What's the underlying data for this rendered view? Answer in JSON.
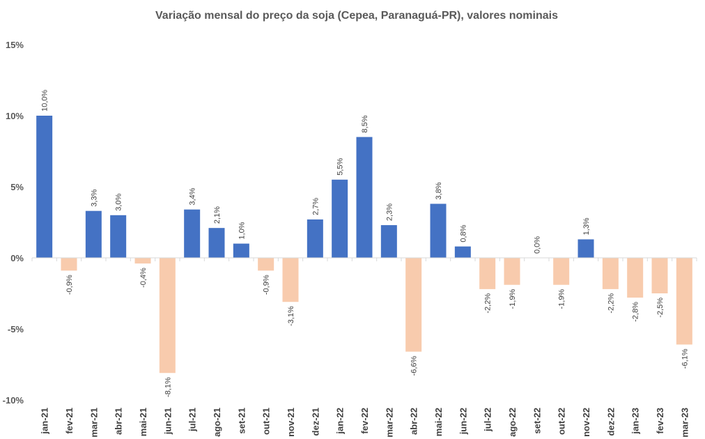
{
  "chart_data": {
    "type": "bar",
    "title": "Variação mensal do preço da soja (Cepea, Paranaguá-PR), valores nominais",
    "xlabel": "",
    "ylabel": "",
    "ylim": [
      -10,
      15
    ],
    "yticks": [
      15,
      10,
      5,
      0,
      -5,
      -10
    ],
    "ytick_labels": [
      "15%",
      "10%",
      "5%",
      "0%",
      "-5%",
      "-10%"
    ],
    "grid": false,
    "colors": {
      "positive": "#4472C4",
      "negative": "#F8CBAD"
    },
    "categories": [
      "jan-21",
      "fev-21",
      "mar-21",
      "abr-21",
      "mai-21",
      "jun-21",
      "jul-21",
      "ago-21",
      "set-21",
      "out-21",
      "nov-21",
      "dez-21",
      "jan-22",
      "fev-22",
      "mar-22",
      "abr-22",
      "mai-22",
      "jun-22",
      "jul-22",
      "ago-22",
      "set-22",
      "out-22",
      "nov-22",
      "dez-22",
      "jan-23",
      "fev-23",
      "mar-23"
    ],
    "values": [
      10.0,
      -0.9,
      3.3,
      3.0,
      -0.4,
      -8.1,
      3.4,
      2.1,
      1.0,
      -0.9,
      -3.1,
      2.7,
      5.5,
      8.5,
      2.3,
      -6.6,
      3.8,
      0.8,
      -2.2,
      -1.9,
      0.0,
      -1.9,
      1.3,
      -2.2,
      -2.8,
      -2.5,
      -6.1
    ],
    "data_labels": [
      "10,0%",
      "-0,9%",
      "3,3%",
      "3,0%",
      "-0,4%",
      "-8,1%",
      "3,4%",
      "2,1%",
      "1,0%",
      "-0,9%",
      "-3,1%",
      "2,7%",
      "5,5%",
      "8,5%",
      "2,3%",
      "-6,6%",
      "3,8%",
      "0,8%",
      "-2,2%",
      "-1,9%",
      "0,0%",
      "-1,9%",
      "1,3%",
      "-2,2%",
      "-2,8%",
      "-2,5%",
      "-6,1%"
    ]
  }
}
